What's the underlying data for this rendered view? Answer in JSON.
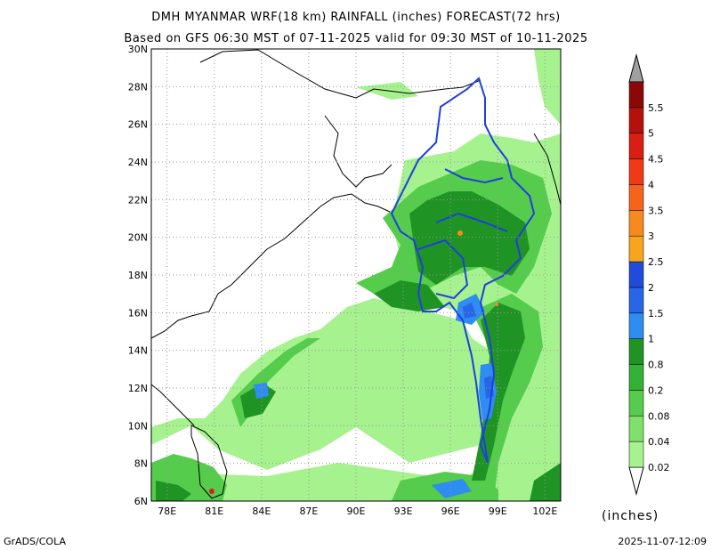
{
  "title_line1": "DMH MYANMAR WRF(18 km) RAINFALL (inches) FORECAST(72 hrs)",
  "title_line2": "Based on GFS 06:30 MST of 07-11-2025 valid for 09:30 MST of 10-11-2025",
  "lat_labels": [
    "30N",
    "28N",
    "26N",
    "24N",
    "22N",
    "20N",
    "18N",
    "16N",
    "14N",
    "12N",
    "10N",
    "8N",
    "6N"
  ],
  "lon_labels": [
    "78E",
    "81E",
    "84E",
    "87E",
    "90E",
    "93E",
    "96E",
    "99E",
    "102E"
  ],
  "colorbar": {
    "levels": [
      "0.02",
      "0.04",
      "0.08",
      "0.2",
      "0.8",
      "1",
      "1.5",
      "2",
      "2.5",
      "3",
      "3.5",
      "4",
      "4.5",
      "5",
      "5.5"
    ],
    "colors": [
      "#a6f28f",
      "#7fe06a",
      "#55cc4c",
      "#33b236",
      "#1f9424",
      "#2f8cf0",
      "#2766e6",
      "#1f4dd9",
      "#f7a51e",
      "#f78a1e",
      "#f5641a",
      "#f03a16",
      "#d91e12",
      "#b5110c",
      "#8c0808"
    ],
    "top_arrow_color": "#a0a0a0"
  },
  "units_label": "(inches)",
  "credit_left": "GrADS/COLA",
  "credit_right": "2025-11-07-12:09"
}
